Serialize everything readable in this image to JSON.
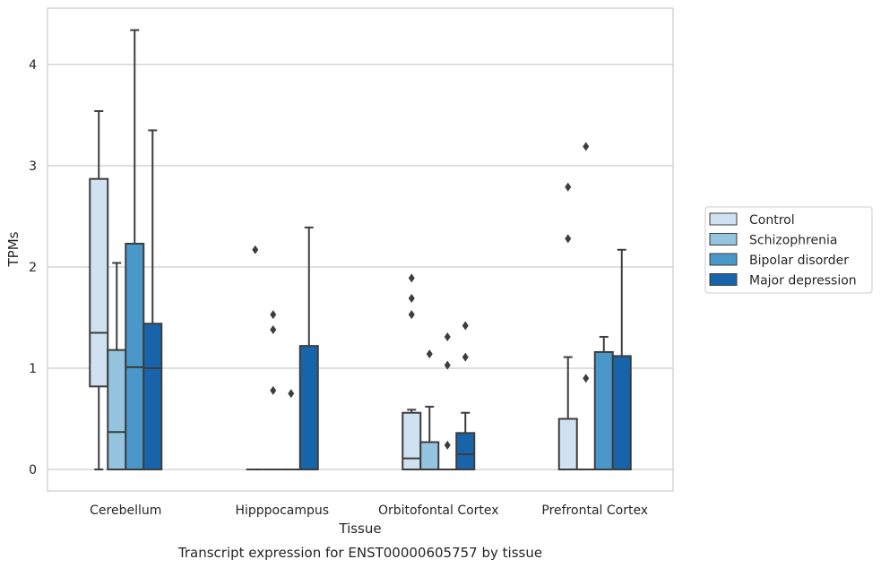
{
  "chart_data": {
    "type": "boxplot",
    "caption": "Transcript expression for ENST00000605757 by tissue",
    "xlabel": "Tissue",
    "ylabel": "TPMs",
    "ylim": [
      -0.2,
      4.55
    ],
    "yticks": [
      "0",
      "1",
      "2",
      "3",
      "4"
    ],
    "grid": "horizontal",
    "legend_position": "right",
    "categories": [
      "Cerebellum",
      "Hipppocampus",
      "Orbitofontal Cortex",
      "Prefrontal Cortex"
    ],
    "series": [
      {
        "name": "Control",
        "color": "#d0e1f2"
      },
      {
        "name": "Schizophrenia",
        "color": "#94c4df"
      },
      {
        "name": "Bipolar disorder",
        "color": "#4a98c9"
      },
      {
        "name": "Major depression",
        "color": "#1764ab"
      }
    ],
    "boxes": [
      [
        {
          "whislo": 0.0,
          "q1": 0.82,
          "med": 1.35,
          "q3": 2.87,
          "whishi": 3.54,
          "fliers": []
        },
        {
          "whislo": 0.0,
          "q1": 0.0,
          "med": 0.37,
          "q3": 1.18,
          "whishi": 2.04,
          "fliers": []
        },
        {
          "whislo": 0.0,
          "q1": 0.0,
          "med": 1.01,
          "q3": 2.23,
          "whishi": 4.34,
          "fliers": []
        },
        {
          "whislo": 0.0,
          "q1": 0.0,
          "med": 1.0,
          "q3": 1.44,
          "whishi": 3.35,
          "fliers": []
        }
      ],
      [
        {
          "whislo": 0.0,
          "q1": 0.0,
          "med": 0.0,
          "q3": 0.0,
          "whishi": 0.0,
          "fliers": [
            2.17
          ]
        },
        {
          "whislo": 0.0,
          "q1": 0.0,
          "med": 0.0,
          "q3": 0.0,
          "whishi": 0.0,
          "fliers": [
            1.53,
            1.38,
            0.78
          ]
        },
        {
          "whislo": 0.0,
          "q1": 0.0,
          "med": 0.0,
          "q3": 0.0,
          "whishi": 0.0,
          "fliers": [
            0.75
          ]
        },
        {
          "whislo": 0.0,
          "q1": 0.0,
          "med": 0.0,
          "q3": 1.22,
          "whishi": 2.39,
          "fliers": []
        }
      ],
      [
        {
          "whislo": 0.0,
          "q1": 0.0,
          "med": 0.11,
          "q3": 0.56,
          "whishi": 0.59,
          "fliers": [
            1.89,
            1.69,
            1.53
          ]
        },
        {
          "whislo": 0.0,
          "q1": 0.0,
          "med": 0.0,
          "q3": 0.27,
          "whishi": 0.62,
          "fliers": [
            1.14
          ]
        },
        {
          "whislo": 0.0,
          "q1": 0.0,
          "med": 0.0,
          "q3": 0.0,
          "whishi": 0.0,
          "fliers": [
            1.31,
            1.03,
            0.24
          ]
        },
        {
          "whislo": 0.0,
          "q1": 0.0,
          "med": 0.15,
          "q3": 0.36,
          "whishi": 0.56,
          "fliers": [
            1.42,
            1.11
          ]
        }
      ],
      [
        {
          "whislo": 0.0,
          "q1": 0.0,
          "med": 0.0,
          "q3": 0.5,
          "whishi": 1.11,
          "fliers": [
            2.79,
            2.28
          ]
        },
        {
          "whislo": 0.0,
          "q1": 0.0,
          "med": 0.0,
          "q3": 0.0,
          "whishi": 0.0,
          "fliers": [
            3.19,
            0.9
          ]
        },
        {
          "whislo": 0.0,
          "q1": 0.0,
          "med": 0.0,
          "q3": 1.16,
          "whishi": 1.31,
          "fliers": []
        },
        {
          "whislo": 0.0,
          "q1": 0.0,
          "med": 0.0,
          "q3": 1.12,
          "whishi": 2.17,
          "fliers": []
        }
      ]
    ]
  }
}
